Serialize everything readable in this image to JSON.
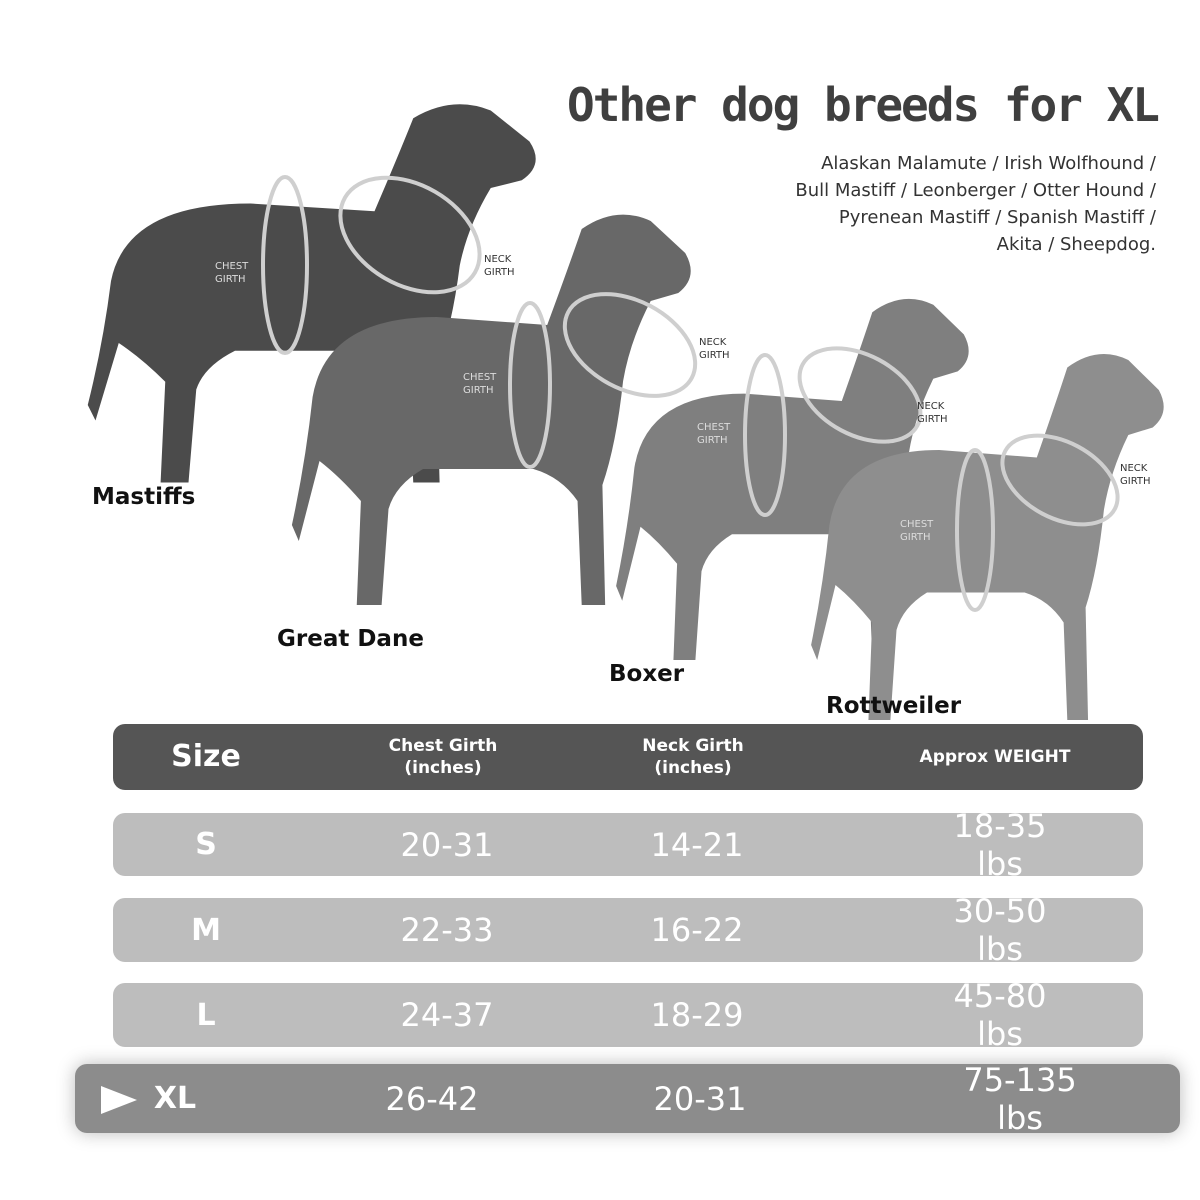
{
  "header": {
    "title": "Other dog breeds for XL",
    "breeds": [
      "Alaskan Malamute / Irish Wolfhound /",
      "Bull Mastiff / Leonberger / Otter Hound /",
      "Pyrenean Mastiff / Spanish Mastiff /",
      "Akita / Sheepdog."
    ]
  },
  "dogs": [
    {
      "name": "Mastiffs",
      "chest_label": "CHEST GIRTH",
      "neck_label": "NECK GIRTH"
    },
    {
      "name": "Great Dane",
      "chest_label": "CHEST GIRTH",
      "neck_label": "NECK GIRTH"
    },
    {
      "name": "Boxer",
      "chest_label": "CHEST GIRTH",
      "neck_label": "NECK GIRTH"
    },
    {
      "name": "Rottweiler",
      "chest_label": "CHEST GIRTH",
      "neck_label": "NECK GIRTH"
    }
  ],
  "table": {
    "columns": [
      "Size",
      "Chest Girth (inches)",
      "Neck Girth (inches)",
      "Approx WEIGHT"
    ],
    "rows": [
      [
        "S",
        "20-31",
        "14-21",
        "18-35 lbs"
      ],
      [
        "M",
        "22-33",
        "16-22",
        "30-50 lbs"
      ],
      [
        "L",
        "24-37",
        "18-29",
        "45-80 lbs"
      ],
      [
        "XL",
        "26-42",
        "20-31",
        "75-135 lbs"
      ]
    ]
  }
}
